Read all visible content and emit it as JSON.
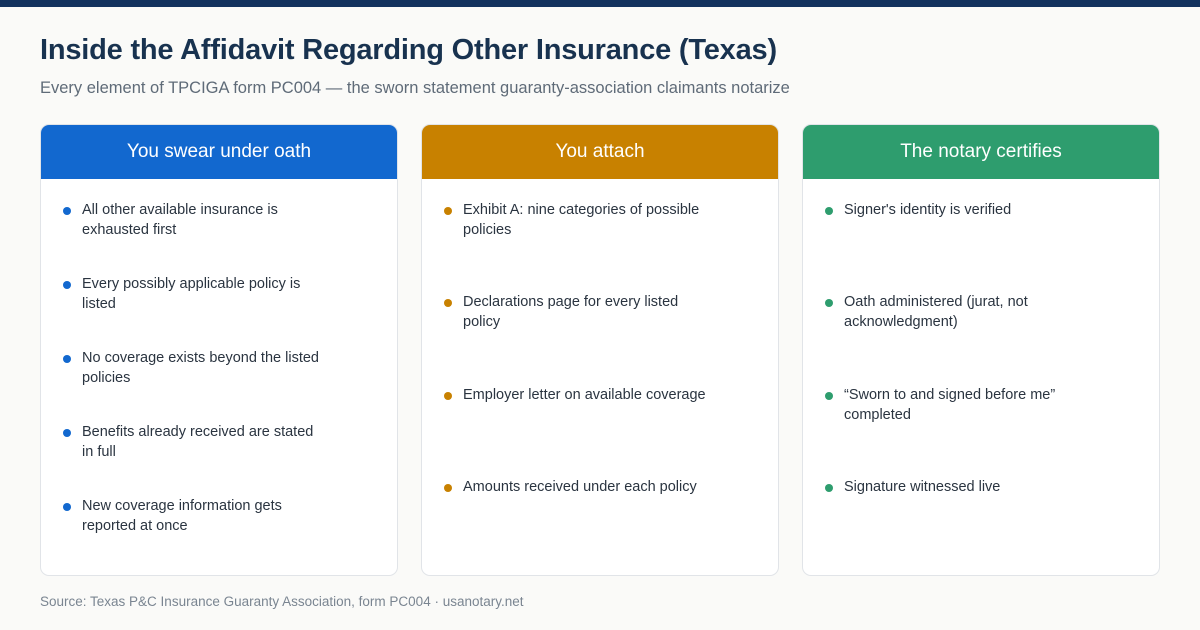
{
  "title": "Inside the Affidavit Regarding Other Insurance (Texas)",
  "subtitle": "Every element of TPCIGA form PC004 — the sworn statement guaranty-association claimants notarize",
  "colors": {
    "top_bar": "#13325e",
    "swear": "#1268cf",
    "attach": "#c88100",
    "notary": "#2e9d6e"
  },
  "columns": [
    {
      "heading": "You swear under oath",
      "items": [
        "All other available insurance is exhausted first",
        "Every possibly applicable policy is listed",
        "No coverage exists beyond the listed policies",
        "Benefits already received are stated in full",
        "New coverage information gets reported at once"
      ]
    },
    {
      "heading": "You attach",
      "items": [
        "Exhibit A: nine categories of possible policies",
        "Declarations page for every listed policy",
        "Employer letter on available coverage",
        "Amounts received under each policy"
      ]
    },
    {
      "heading": "The notary certifies",
      "items": [
        "Signer's identity is verified",
        "Oath administered (jurat, not acknowledgment)",
        "“Sworn to and signed before me” completed",
        "Signature witnessed live"
      ]
    }
  ],
  "source": "Source: Texas P&C Insurance Guaranty Association, form PC004 · usanotary.net"
}
